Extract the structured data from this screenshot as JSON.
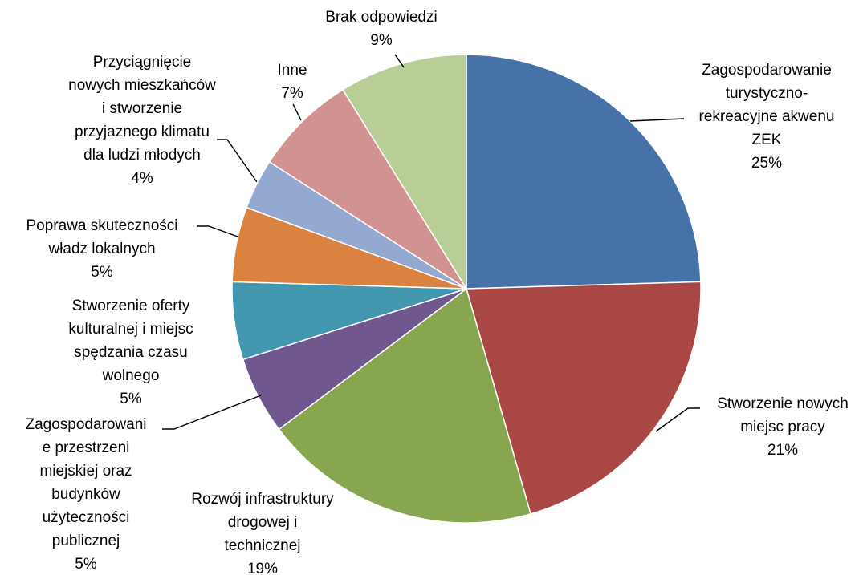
{
  "chart_data": {
    "type": "pie",
    "title": "",
    "start_angle_deg": 0,
    "direction": "clockwise",
    "legend": "none",
    "slices": [
      {
        "label": [
          "Zagospodarowanie",
          "turystyczno-",
          "rekreacyjne akwenu",
          "ZEK"
        ],
        "percent_label": "25%",
        "value": 24.7,
        "color": "#4672A8"
      },
      {
        "label": [
          "Stworzenie nowych",
          "miejsc pracy"
        ],
        "percent_label": "21%",
        "value": 21.2,
        "color": "#A94745"
      },
      {
        "label": [
          "Rozwój infrastruktury",
          "drogowej i",
          "technicznej"
        ],
        "percent_label": "19%",
        "value": 19.3,
        "color": "#88A54F"
      },
      {
        "label": [
          "Zagospodarowani",
          "e przestrzeni",
          "miejskiej oraz",
          "budynków",
          "użyteczności",
          "publicznej"
        ],
        "percent_label": "5%",
        "value": 5.4,
        "color": "#70578E"
      },
      {
        "label": [
          "Stworzenie oferty",
          "kulturalnej i miejsc",
          "spędzania czasu",
          "wolnego"
        ],
        "percent_label": "5%",
        "value": 5.4,
        "color": "#4397AE"
      },
      {
        "label": [
          "Poprawa skuteczności",
          "władz lokalnych"
        ],
        "percent_label": "5%",
        "value": 5.2,
        "color": "#DA8240"
      },
      {
        "label": [
          "Przyciągnięcie",
          "nowych mieszkańców",
          "i stworzenie",
          "przyjaznego klimatu",
          "dla ludzi młodych"
        ],
        "percent_label": "4%",
        "value": 3.5,
        "color": "#93A9D0"
      },
      {
        "label": [
          "Inne"
        ],
        "percent_label": "7%",
        "value": 7.1,
        "color": "#D19392"
      },
      {
        "label": [
          "Brak odpowiedzi"
        ],
        "percent_label": "9%",
        "value": 8.9,
        "color": "#B9CD96"
      }
    ]
  }
}
